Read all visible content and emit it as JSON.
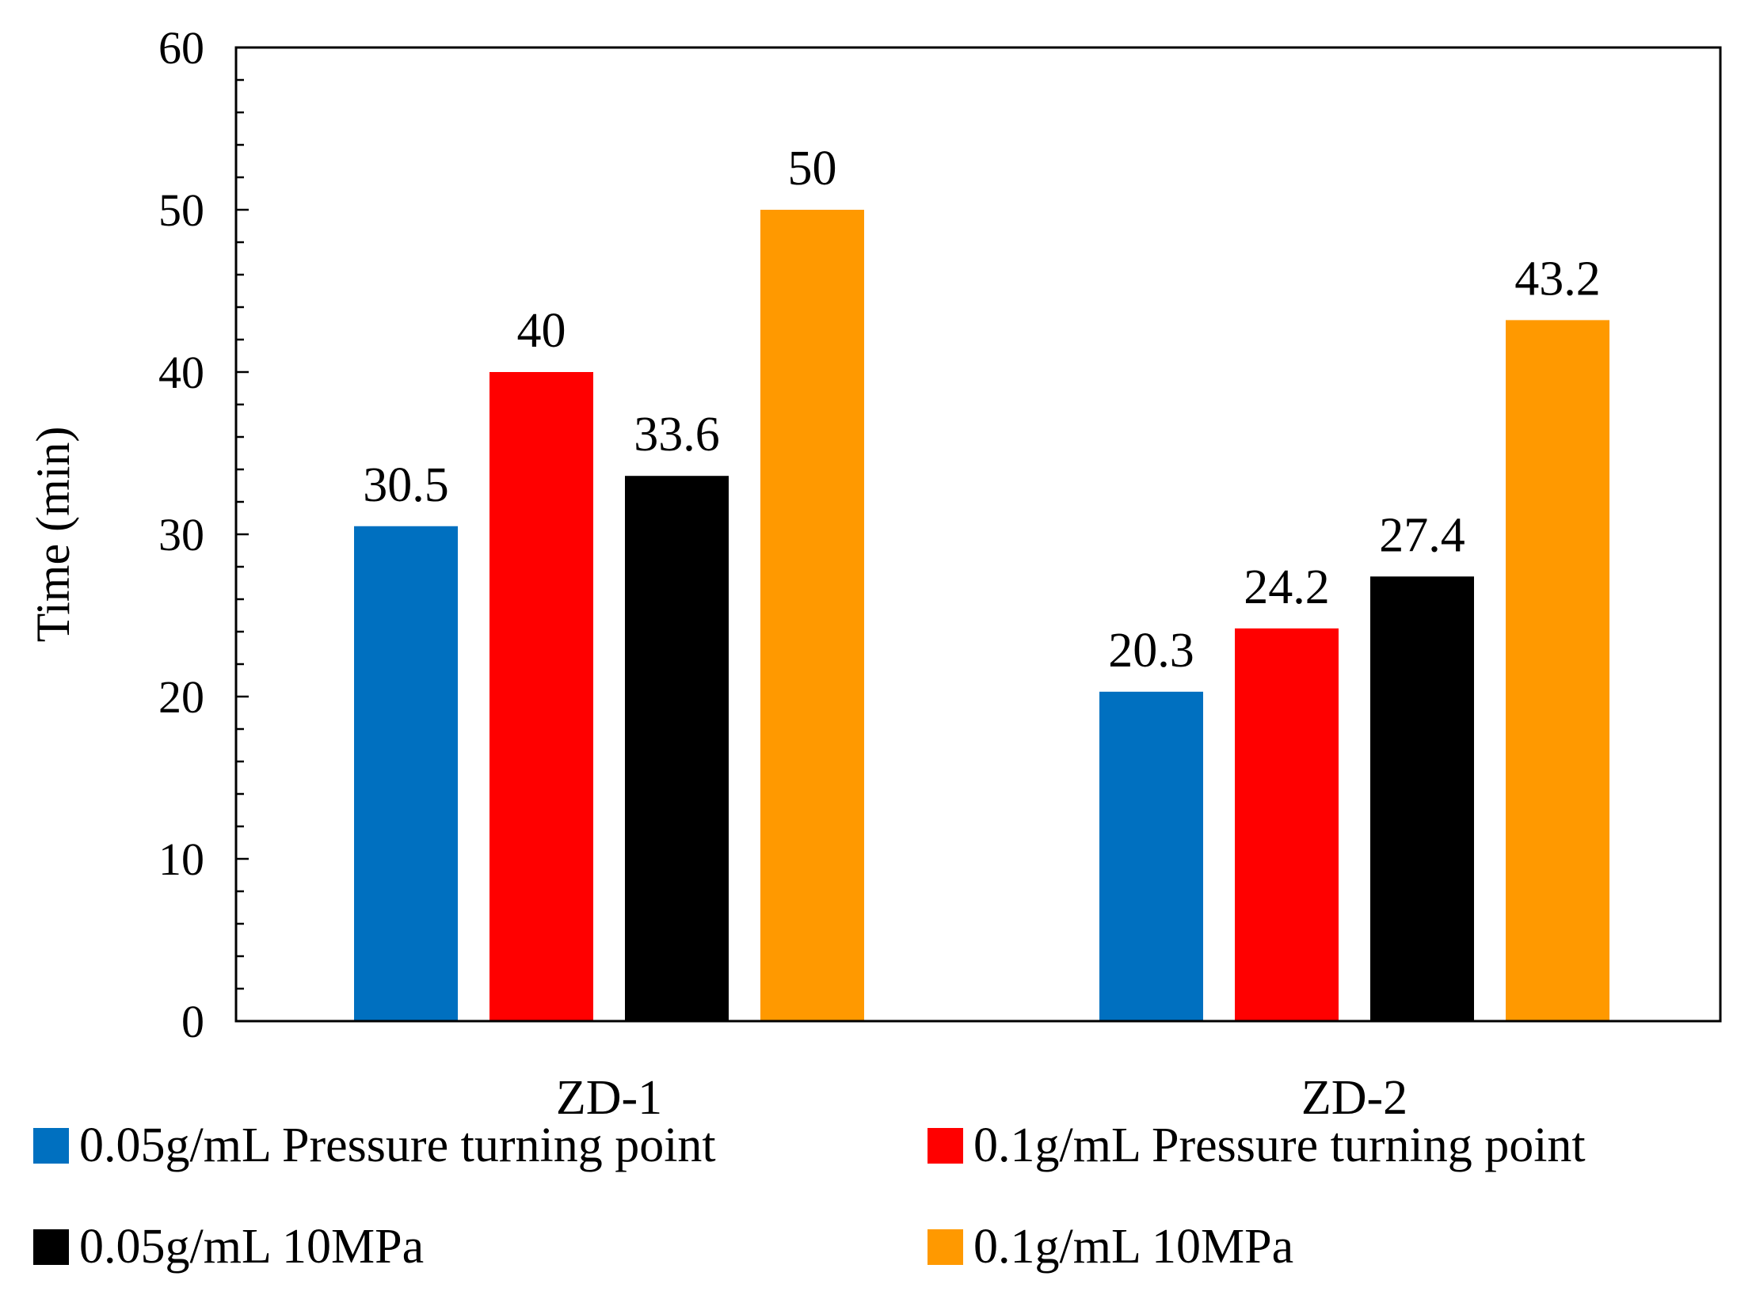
{
  "chart_data": {
    "type": "bar",
    "title": "",
    "xlabel": "",
    "ylabel": "Time (min)",
    "ylim": [
      0,
      60
    ],
    "yticks": [
      0,
      10,
      20,
      30,
      40,
      50,
      60
    ],
    "yticks_labels": [
      "0",
      "10",
      "20",
      "30",
      "40",
      "50",
      "60"
    ],
    "minor_tick_step": 2,
    "grid": false,
    "legend_position": "bottom",
    "categories": [
      "ZD-1",
      "ZD-2"
    ],
    "series": [
      {
        "name": "0.05g/mL Pressure turning point",
        "color": "#0070C0",
        "values": [
          30.5,
          20.3
        ],
        "labels": [
          "30.5",
          "20.3"
        ]
      },
      {
        "name": "0.1g/mL Pressure turning point",
        "color": "#FF0000",
        "values": [
          40,
          24.2
        ],
        "labels": [
          "40",
          "24.2"
        ]
      },
      {
        "name": "0.05g/mL 10MPa",
        "color": "#000000",
        "values": [
          33.6,
          27.4
        ],
        "labels": [
          "33.6",
          "27.4"
        ]
      },
      {
        "name": "0.1g/mL 10MPa",
        "color": "#FF9900",
        "values": [
          50,
          43.2
        ],
        "labels": [
          "50",
          "43.2"
        ]
      }
    ]
  }
}
